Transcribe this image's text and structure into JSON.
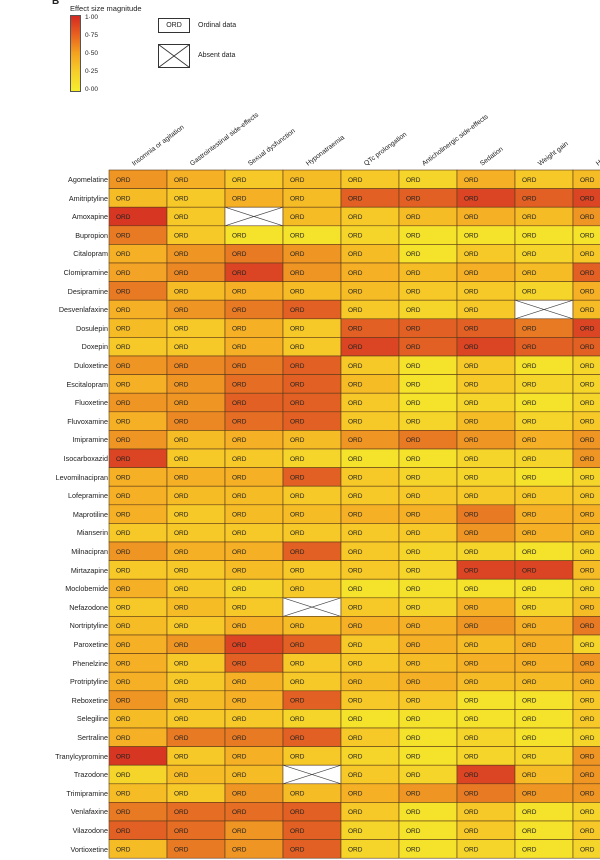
{
  "panel_letter": "B",
  "legend": {
    "title": "Effect size magnitude",
    "ticks": [
      "1·00",
      "0·75",
      "0·50",
      "0·25",
      "0·00"
    ],
    "ord_box_text": "ORD",
    "ord_label": "Ordinal data",
    "absent_label": "Absent data"
  },
  "colors": {
    "low": "#f5ee2c",
    "mid": "#f6b025",
    "high": "#d42a22",
    "grid": "#5a3a1a"
  },
  "chart_data": {
    "type": "heatmap",
    "cell_text": "ORD",
    "columns": [
      "Insomnia or agitation",
      "Gastrointestinal side-effects",
      "Sexual dysfunction",
      "Hyponatraemia",
      "QTc prolongation",
      "Anticholinergic side-effects",
      "Sedation",
      "Weight gain",
      "Hypotension*"
    ],
    "rows": [
      "Agomelatine",
      "Amitriptyline",
      "Amoxapine",
      "Bupropion",
      "Citalopram",
      "Clomipramine",
      "Desipramine",
      "Desvenlafaxine",
      "Dosulepin",
      "Doxepin",
      "Duloxetine",
      "Escitalopram",
      "Fluoxetine",
      "Fluvoxamine",
      "Imipramine",
      "Isocarboxazid",
      "Levomilnacipran",
      "Lofepramine",
      "Maprotiline",
      "Mianserin",
      "Milnacipran",
      "Mirtazapine",
      "Moclobemide",
      "Nefazodone",
      "Nortriptyline",
      "Paroxetine",
      "Phenelzine",
      "Protriptyline",
      "Reboxetine",
      "Selegiline",
      "Sertraline",
      "Tranylcypromine",
      "Trazodone",
      "Trimipramine",
      "Venlafaxine",
      "Vilazodone",
      "Vortioxetine"
    ],
    "values": [
      [
        0.6,
        0.5,
        0.3,
        0.4,
        0.3,
        0.2,
        0.5,
        0.3,
        0.4
      ],
      [
        0.4,
        0.3,
        0.5,
        0.4,
        0.8,
        0.8,
        0.9,
        0.8,
        0.9
      ],
      [
        0.95,
        0.3,
        null,
        0.4,
        0.3,
        0.4,
        0.5,
        0.4,
        0.6
      ],
      [
        0.7,
        0.3,
        0.1,
        0.1,
        0.2,
        0.1,
        0.1,
        0.1,
        0.1
      ],
      [
        0.5,
        0.6,
        0.7,
        0.6,
        0.4,
        0.1,
        0.3,
        0.2,
        0.3
      ],
      [
        0.55,
        0.65,
        0.9,
        0.6,
        0.5,
        0.4,
        0.5,
        0.4,
        0.8
      ],
      [
        0.7,
        0.4,
        0.5,
        0.4,
        0.4,
        0.3,
        0.3,
        0.2,
        0.5
      ],
      [
        0.5,
        0.6,
        0.7,
        0.8,
        0.3,
        0.2,
        0.3,
        null,
        0.4
      ],
      [
        0.4,
        0.3,
        0.5,
        0.3,
        0.8,
        0.8,
        0.8,
        0.7,
        0.9
      ],
      [
        0.3,
        0.3,
        0.5,
        0.3,
        0.9,
        0.8,
        0.9,
        0.8,
        0.8
      ],
      [
        0.6,
        0.65,
        0.7,
        0.8,
        0.3,
        0.1,
        0.3,
        0.1,
        0.2
      ],
      [
        0.5,
        0.6,
        0.75,
        0.8,
        0.4,
        0.1,
        0.3,
        0.2,
        0.2
      ],
      [
        0.6,
        0.6,
        0.8,
        0.8,
        0.3,
        0.1,
        0.2,
        0.1,
        0.2
      ],
      [
        0.5,
        0.65,
        0.75,
        0.8,
        0.3,
        0.2,
        0.4,
        0.2,
        0.3
      ],
      [
        0.6,
        0.4,
        0.5,
        0.4,
        0.6,
        0.7,
        0.6,
        0.5,
        0.6
      ],
      [
        0.9,
        0.3,
        0.3,
        0.2,
        0.1,
        0.1,
        0.2,
        0.2,
        0.6
      ],
      [
        0.5,
        0.5,
        0.5,
        0.8,
        0.3,
        0.2,
        0.2,
        0.1,
        0.2
      ],
      [
        0.5,
        0.4,
        0.4,
        0.3,
        0.3,
        0.3,
        0.3,
        0.3,
        0.3
      ],
      [
        0.5,
        0.3,
        0.4,
        0.4,
        0.5,
        0.5,
        0.7,
        0.5,
        0.5
      ],
      [
        0.3,
        0.3,
        0.3,
        0.3,
        0.3,
        0.3,
        0.6,
        0.5,
        0.4
      ],
      [
        0.6,
        0.5,
        0.5,
        0.8,
        0.3,
        0.2,
        0.2,
        0.1,
        0.2
      ],
      [
        0.3,
        0.3,
        0.4,
        0.3,
        0.3,
        0.2,
        0.9,
        0.9,
        0.4
      ],
      [
        0.5,
        0.3,
        0.2,
        0.3,
        0.1,
        0.1,
        0.1,
        0.1,
        0.2
      ],
      [
        0.3,
        0.4,
        0.3,
        null,
        0.3,
        0.2,
        0.5,
        0.2,
        0.4
      ],
      [
        0.4,
        0.3,
        0.5,
        0.4,
        0.5,
        0.5,
        0.6,
        0.5,
        0.7
      ],
      [
        0.5,
        0.6,
        0.9,
        0.8,
        0.3,
        0.5,
        0.4,
        0.5,
        0.2
      ],
      [
        0.5,
        0.3,
        0.8,
        0.3,
        0.3,
        0.4,
        0.5,
        0.5,
        0.6
      ],
      [
        0.5,
        0.3,
        0.5,
        0.3,
        0.4,
        0.5,
        0.4,
        0.4,
        0.5
      ],
      [
        0.6,
        0.4,
        0.5,
        0.8,
        0.3,
        0.3,
        0.1,
        0.1,
        0.3
      ],
      [
        0.4,
        0.3,
        0.3,
        0.2,
        0.1,
        0.1,
        0.1,
        0.1,
        0.3
      ],
      [
        0.5,
        0.7,
        0.7,
        0.8,
        0.3,
        0.1,
        0.2,
        0.1,
        0.2
      ],
      [
        0.95,
        0.3,
        0.5,
        0.3,
        0.2,
        0.1,
        0.2,
        0.2,
        0.6
      ],
      [
        0.2,
        0.4,
        0.4,
        null,
        0.3,
        0.2,
        0.9,
        0.4,
        0.6
      ],
      [
        0.4,
        0.3,
        0.6,
        0.4,
        0.5,
        0.6,
        0.7,
        0.6,
        0.6
      ],
      [
        0.7,
        0.75,
        0.75,
        0.8,
        0.3,
        0.1,
        0.3,
        0.1,
        0.2
      ],
      [
        0.8,
        0.75,
        0.6,
        0.8,
        0.2,
        0.1,
        0.3,
        0.1,
        0.3
      ],
      [
        0.4,
        0.7,
        0.6,
        0.8,
        0.2,
        0.1,
        0.2,
        0.1,
        0.2
      ]
    ],
    "color_scale_range": [
      0,
      1
    ],
    "legend_position": "top-left"
  }
}
